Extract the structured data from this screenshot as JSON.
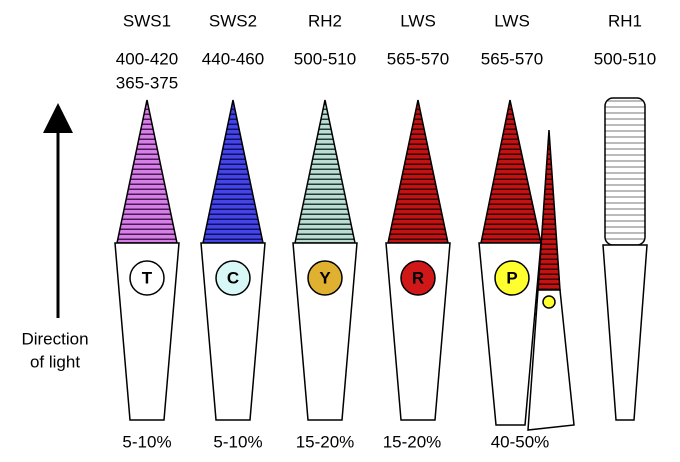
{
  "columns": [
    {
      "opsin": "SWS1",
      "wavelengths": [
        "400-420",
        "365-375"
      ],
      "droplet": "T",
      "percent": "5-10%"
    },
    {
      "opsin": "SWS2",
      "wavelengths": [
        "440-460"
      ],
      "droplet": "C",
      "percent": "5-10%"
    },
    {
      "opsin": "RH2",
      "wavelengths": [
        "500-510"
      ],
      "droplet": "Y",
      "percent": "15-20%"
    },
    {
      "opsin": "LWS",
      "wavelengths": [
        "565-570"
      ],
      "droplet": "R",
      "percent": "15-20%"
    },
    {
      "opsin": "LWS",
      "wavelengths": [
        "565-570"
      ],
      "droplet": "P",
      "percent": "40-50%"
    },
    {
      "opsin": "RH1",
      "wavelengths": [
        "500-510"
      ]
    }
  ],
  "direction_label": [
    "Direction",
    "of light"
  ]
}
